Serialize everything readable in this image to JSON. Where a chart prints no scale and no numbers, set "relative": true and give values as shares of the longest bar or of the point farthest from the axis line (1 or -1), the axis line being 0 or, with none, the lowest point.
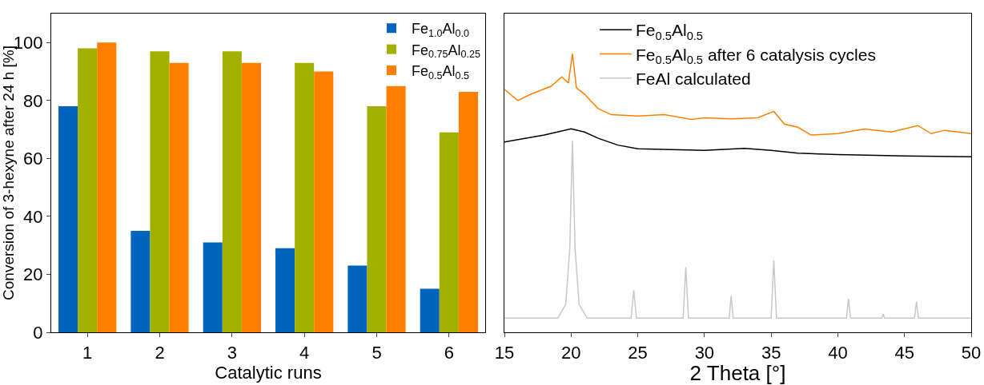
{
  "chart_data": [
    {
      "type": "bar",
      "xlabel": "Catalytic runs",
      "ylabel": "Conversion of 3-hexyne after 24 h [%]",
      "categories": [
        "1",
        "2",
        "3",
        "4",
        "5",
        "6"
      ],
      "series": [
        {
          "name": "Fe$_{1.0}$Al$_{0.0}$",
          "color": "#0063be",
          "values": [
            78,
            35,
            31,
            29,
            23,
            15
          ]
        },
        {
          "name": "Fe$_{0.75}$Al$_{0.25}$",
          "color": "#a2b000",
          "values": [
            98,
            97,
            97,
            93,
            78,
            69
          ]
        },
        {
          "name": "Fe$_{0.5}$Al$_{0.5}$",
          "color": "#ff7f00",
          "values": [
            100,
            93,
            93,
            90,
            85,
            83
          ]
        }
      ],
      "ylim": [
        0,
        110
      ],
      "yticks": [
        0,
        20,
        40,
        60,
        80,
        100
      ],
      "grid": false,
      "legend": "top right"
    },
    {
      "type": "line",
      "relative": true,
      "xlabel": "2 Theta [°]",
      "xlim": [
        15,
        50
      ],
      "xticks": [
        15,
        20,
        25,
        30,
        35,
        40,
        45,
        50
      ],
      "tick_labels": "x",
      "grid": false,
      "legend": "top",
      "marker": "none",
      "line_style": "solid",
      "series": [
        {
          "name": "Fe$_{0.5}$Al$_{0.5}$",
          "color": "#000000",
          "x": [
            15,
            18,
            20,
            21,
            22,
            23.5,
            25,
            30,
            33,
            35,
            37,
            40,
            45,
            50
          ],
          "values": [
            0.683,
            0.708,
            0.73,
            0.719,
            0.697,
            0.672,
            0.659,
            0.653,
            0.66,
            0.653,
            0.643,
            0.638,
            0.633,
            0.63
          ]
        },
        {
          "name": "Fe$_{0.5}$Al$_{0.5}$ after 6 catalysis cycles",
          "color": "#ff8000",
          "x": [
            15,
            16,
            17,
            18.5,
            19.3,
            19.8,
            20.1,
            20.4,
            21,
            22,
            23,
            25,
            27,
            29,
            30,
            32,
            34,
            35.2,
            36,
            37,
            38,
            40,
            42,
            44,
            46,
            47,
            48,
            50
          ],
          "values": [
            0.872,
            0.832,
            0.855,
            0.883,
            0.917,
            0.895,
            1.0,
            0.878,
            0.855,
            0.804,
            0.781,
            0.776,
            0.781,
            0.764,
            0.77,
            0.766,
            0.77,
            0.793,
            0.747,
            0.736,
            0.708,
            0.713,
            0.73,
            0.719,
            0.742,
            0.713,
            0.725,
            0.713
          ]
        },
        {
          "name": "FeAl calculated",
          "color": "#c8c8c8",
          "x": [
            15,
            19.0,
            19.6,
            19.9,
            20.1,
            20.3,
            20.6,
            21.2,
            24.5,
            24.7,
            24.9,
            28.4,
            28.6,
            28.8,
            31.85,
            32.0,
            32.15,
            35.0,
            35.2,
            35.4,
            40.65,
            40.8,
            40.95,
            43.3,
            43.4,
            43.5,
            45.75,
            45.9,
            46.05,
            50
          ],
          "values": [
            0.051,
            0.051,
            0.1,
            0.3,
            0.687,
            0.3,
            0.1,
            0.051,
            0.051,
            0.151,
            0.051,
            0.051,
            0.234,
            0.051,
            0.051,
            0.13,
            0.051,
            0.051,
            0.259,
            0.051,
            0.051,
            0.121,
            0.051,
            0.051,
            0.065,
            0.051,
            0.051,
            0.11,
            0.051,
            0.051
          ]
        }
      ]
    }
  ]
}
